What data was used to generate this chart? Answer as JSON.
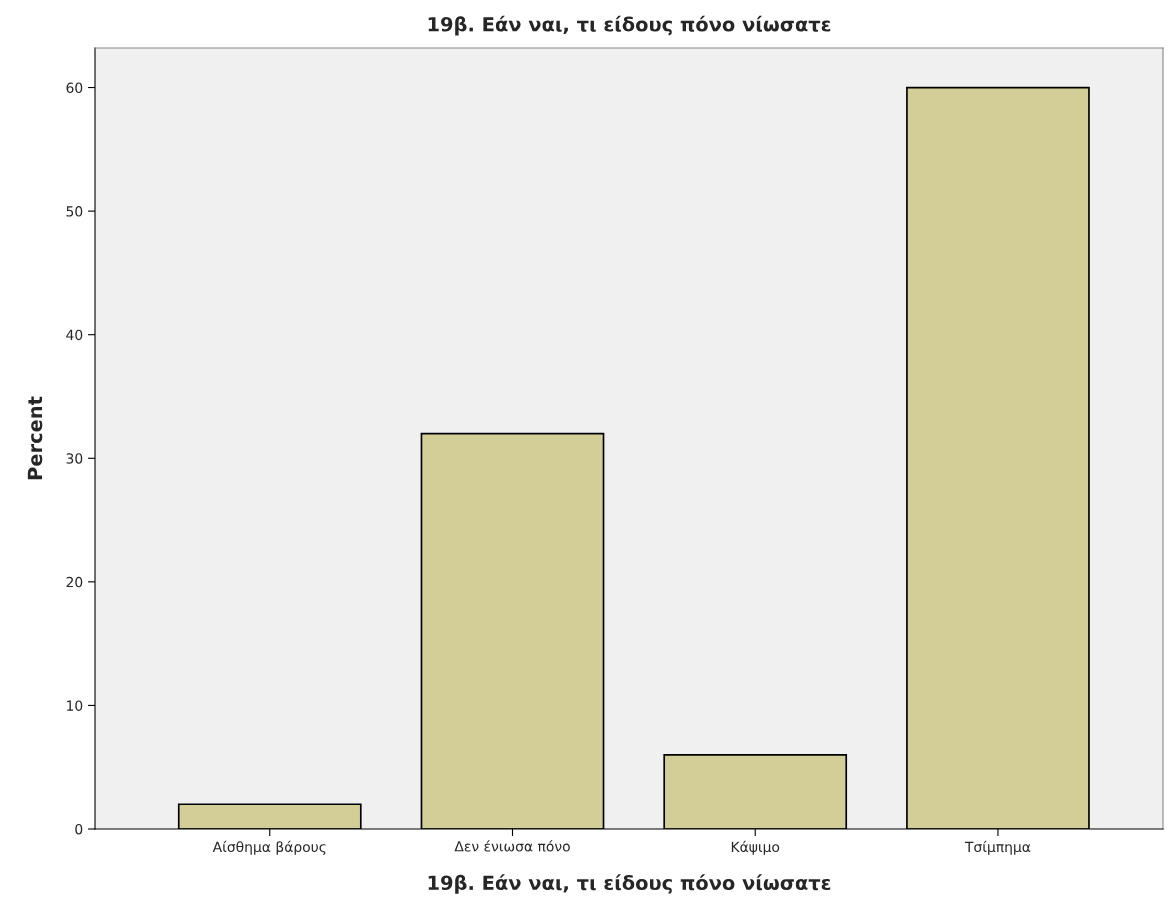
{
  "chart_data": {
    "type": "bar",
    "title": "19β. Εάν ναι, τι είδους πόνο νίωσατε",
    "xlabel": "19β. Εάν ναι, τι είδους πόνο νίωσατε",
    "ylabel": "Percent",
    "categories": [
      "Αίσθημα βάρους",
      "Δεν ένιωσα πόνο",
      "Κάψιμο",
      "Τσίμπημα"
    ],
    "values": [
      2,
      32,
      6,
      60
    ],
    "color": "#d3ce97",
    "ylim": [
      0,
      63.2
    ],
    "yticks": [
      0,
      10,
      20,
      30,
      40,
      50,
      60
    ],
    "grid": false
  }
}
